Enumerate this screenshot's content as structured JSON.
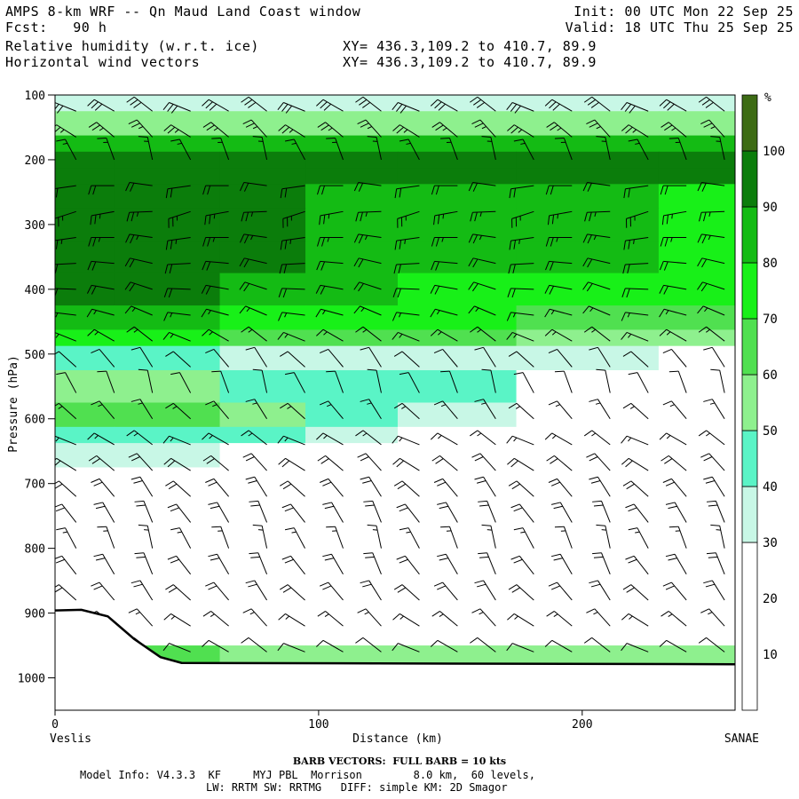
{
  "header": {
    "title_left": "AMPS 8-km WRF -- Qn Maud Land Coast window",
    "fcst_label": "Fcst:",
    "fcst_value": "90 h",
    "field1": "Relative humidity (w.r.t. ice)",
    "field2": "Horizontal wind vectors",
    "xy1": "XY= 436.3,109.2 to 410.7, 89.9",
    "xy2": "XY= 436.3,109.2 to 410.7, 89.9",
    "init": "Init: 00 UTC Mon 22 Sep 25",
    "valid": "Valid: 18 UTC Thu 25 Sep 25"
  },
  "chart_data": {
    "type": "heatmap",
    "title": "Relative humidity (w.r.t. ice) and horizontal wind vectors cross-section",
    "xlabel": "Distance (km)",
    "ylabel": "Pressure (hPa)",
    "x_range": [
      0,
      258
    ],
    "y_range": [
      100,
      1050
    ],
    "x_ticks": [
      0,
      100,
      200
    ],
    "x_tick_labels": [
      "0",
      "100",
      "200"
    ],
    "y_ticks": [
      100,
      200,
      300,
      400,
      500,
      600,
      700,
      800,
      900,
      1000
    ],
    "y_tick_labels": [
      "100",
      "200",
      "300",
      "400",
      "500",
      "600",
      "700",
      "800",
      "900",
      "1000"
    ],
    "x_endpoints": {
      "left": "Veslis",
      "right": "SANAE"
    },
    "colorbar": {
      "unit": "%",
      "levels": [
        10,
        20,
        30,
        40,
        50,
        60,
        70,
        80,
        90,
        100
      ],
      "level_labels": [
        "10",
        "20",
        "30",
        "40",
        "50",
        "60",
        "70",
        "80",
        "90",
        "100"
      ],
      "bins": [
        {
          "min": 0,
          "max": 30,
          "color": "#ffffff"
        },
        {
          "min": 30,
          "max": 40,
          "color": "#c8f7e6"
        },
        {
          "min": 40,
          "max": 50,
          "color": "#5af4c6"
        },
        {
          "min": 50,
          "max": 60,
          "color": "#8ef08e"
        },
        {
          "min": 60,
          "max": 70,
          "color": "#50e050"
        },
        {
          "min": 70,
          "max": 80,
          "color": "#18f018"
        },
        {
          "min": 80,
          "max": 90,
          "color": "#14bb14"
        },
        {
          "min": 90,
          "max": 100,
          "color": "#0b7d0b"
        },
        {
          "min": 100,
          "max": 110,
          "color": "#3d6b14"
        }
      ]
    },
    "columns_km": [
      0,
      45,
      80,
      110,
      150,
      200,
      258
    ],
    "levels_hPa": [
      100,
      150,
      175,
      200,
      225,
      250,
      300,
      350,
      400,
      450,
      475,
      500,
      550,
      600,
      625,
      650,
      700,
      800,
      900,
      1000
    ],
    "rh_percent": [
      [
        33,
        33,
        33,
        33,
        33,
        33,
        33
      ],
      [
        55,
        55,
        55,
        55,
        55,
        55,
        55
      ],
      [
        85,
        85,
        85,
        85,
        85,
        85,
        85
      ],
      [
        92,
        92,
        92,
        92,
        92,
        92,
        92
      ],
      [
        97,
        97,
        97,
        97,
        97,
        97,
        97
      ],
      [
        93,
        93,
        93,
        85,
        80,
        85,
        75
      ],
      [
        93,
        93,
        92,
        85,
        80,
        80,
        75
      ],
      [
        93,
        93,
        92,
        82,
        80,
        80,
        75
      ],
      [
        93,
        92,
        85,
        80,
        78,
        75,
        72
      ],
      [
        85,
        80,
        75,
        72,
        70,
        68,
        65
      ],
      [
        72,
        70,
        65,
        62,
        60,
        58,
        55
      ],
      [
        45,
        40,
        38,
        35,
        33,
        30,
        28
      ],
      [
        50,
        55,
        48,
        45,
        40,
        28,
        22
      ],
      [
        60,
        65,
        55,
        40,
        30,
        22,
        18
      ],
      [
        45,
        45,
        40,
        30,
        25,
        18,
        15
      ],
      [
        35,
        30,
        25,
        22,
        18,
        15,
        15
      ],
      [
        25,
        22,
        20,
        18,
        15,
        15,
        15
      ],
      [
        20,
        18,
        18,
        15,
        15,
        15,
        15
      ],
      [
        20,
        18,
        18,
        15,
        15,
        15,
        15
      ],
      [
        60,
        60,
        55,
        55,
        55,
        55,
        55
      ]
    ],
    "terrain_surface_hPa": {
      "x": [
        0,
        10,
        20,
        30,
        40,
        48,
        258
      ],
      "p": [
        896,
        895,
        905,
        940,
        968,
        977,
        979
      ]
    },
    "wind_barbs": {
      "note": "Full barb = 10 kts",
      "rows_hPa": [
        125,
        165,
        200,
        240,
        280,
        320,
        360,
        400,
        440,
        480,
        520,
        560,
        600,
        640,
        680,
        720,
        760,
        800,
        840,
        880,
        920,
        960
      ],
      "dir_deg": [
        300,
        310,
        340,
        270,
        260,
        270,
        275,
        280,
        285,
        300,
        320,
        340,
        320,
        300,
        310,
        320,
        330,
        340,
        330,
        320,
        310,
        300
      ],
      "speed_kt": [
        30,
        25,
        15,
        20,
        25,
        25,
        20,
        20,
        15,
        15,
        10,
        10,
        15,
        15,
        20,
        20,
        20,
        15,
        20,
        20,
        15,
        10
      ]
    }
  },
  "footer": {
    "barb_note": "BARB VECTORS:  FULL BARB = 10 kts",
    "model_info": "Model Info: V4.3.3  KF     MYJ PBL  Morrison        8.0 km,  60 levels,",
    "physics": "LW: RRTM SW: RRTMG   DIFF: simple KM: 2D Smagor"
  }
}
